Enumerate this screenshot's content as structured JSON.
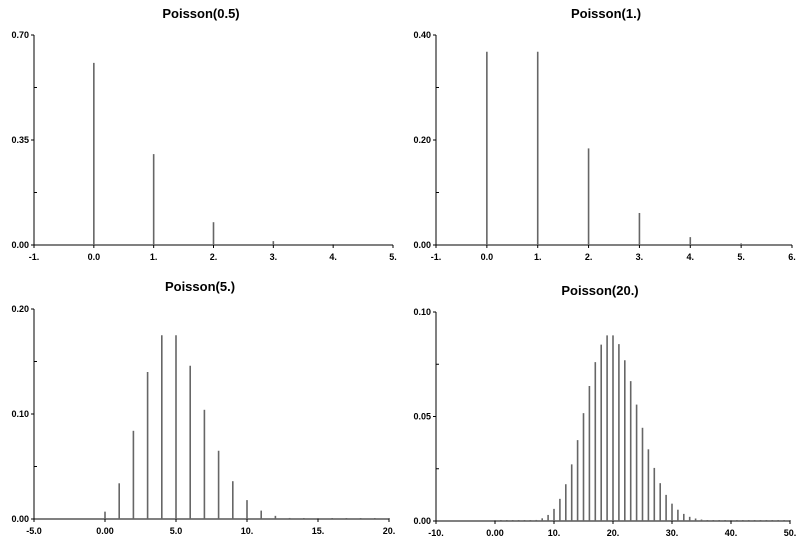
{
  "chart_data": [
    {
      "type": "bar",
      "title": "Poisson(0.5)",
      "xlim": [
        -1,
        5
      ],
      "ylim": [
        0,
        0.7
      ],
      "x_ticks": [
        "-1.",
        "0.0",
        "1.",
        "2.",
        "3.",
        "4.",
        "5."
      ],
      "y_ticks": [
        "0.00",
        "0.35",
        "0.70"
      ],
      "x": [
        0,
        1,
        2,
        3,
        4
      ],
      "values": [
        0.607,
        0.303,
        0.076,
        0.013,
        0.002
      ],
      "color": "#666666"
    },
    {
      "type": "bar",
      "title": "Poisson(1.)",
      "xlim": [
        -1,
        6
      ],
      "ylim": [
        0,
        0.4
      ],
      "x_ticks": [
        "-1.",
        "0.0",
        "1.",
        "2.",
        "3.",
        "4.",
        "5.",
        "6."
      ],
      "y_ticks": [
        "0.00",
        "0.20",
        "0.40"
      ],
      "x": [
        0,
        1,
        2,
        3,
        4,
        5
      ],
      "values": [
        0.368,
        0.368,
        0.184,
        0.061,
        0.015,
        0.003
      ],
      "color": "#666666"
    },
    {
      "type": "bar",
      "title": "Poisson(5.)",
      "xlim": [
        -5,
        20
      ],
      "ylim": [
        0,
        0.2
      ],
      "x_ticks": [
        "-5.0",
        "0.00",
        "5.0",
        "10.",
        "15.",
        "20."
      ],
      "y_ticks": [
        "0.00",
        "0.10",
        "0.20"
      ],
      "x": [
        0,
        1,
        2,
        3,
        4,
        5,
        6,
        7,
        8,
        9,
        10,
        11,
        12,
        13,
        14,
        15,
        16,
        17,
        18,
        19,
        20
      ],
      "values": [
        0.007,
        0.034,
        0.084,
        0.14,
        0.175,
        0.175,
        0.146,
        0.104,
        0.065,
        0.036,
        0.018,
        0.008,
        0.003,
        0.001,
        0.0005,
        0.0002,
        0.0001,
        0.0,
        0.0,
        0.0,
        0.0
      ],
      "color": "#666666"
    },
    {
      "type": "bar",
      "title": "Poisson(20.)",
      "xlim": [
        -10,
        50
      ],
      "ylim": [
        0,
        0.1
      ],
      "x_ticks": [
        "-10.",
        "0.00",
        "10.",
        "20.",
        "30.",
        "40.",
        "50."
      ],
      "y_ticks": [
        "0.00",
        "0.05",
        "0.10"
      ],
      "x": [
        0,
        1,
        2,
        3,
        4,
        5,
        6,
        7,
        8,
        9,
        10,
        11,
        12,
        13,
        14,
        15,
        16,
        17,
        18,
        19,
        20,
        21,
        22,
        23,
        24,
        25,
        26,
        27,
        28,
        29,
        30,
        31,
        32,
        33,
        34,
        35,
        36,
        37,
        38,
        39,
        40,
        41,
        42,
        43,
        44,
        45,
        46,
        47,
        48,
        49,
        50
      ],
      "values": [
        0.0,
        0.0,
        0.0,
        0.0,
        0.0,
        0.0001,
        0.0002,
        0.0005,
        0.0013,
        0.0029,
        0.0058,
        0.0106,
        0.0176,
        0.0271,
        0.0387,
        0.0516,
        0.0646,
        0.076,
        0.0844,
        0.0888,
        0.0888,
        0.0846,
        0.0769,
        0.0669,
        0.0557,
        0.0446,
        0.0343,
        0.0254,
        0.0181,
        0.0125,
        0.0083,
        0.0054,
        0.0034,
        0.002,
        0.0012,
        0.0007,
        0.0004,
        0.0002,
        0.0001,
        0.0001,
        0.0,
        0.0,
        0.0,
        0.0,
        0.0,
        0.0,
        0.0,
        0.0,
        0.0,
        0.0,
        0.0
      ],
      "color": "#666666"
    }
  ]
}
